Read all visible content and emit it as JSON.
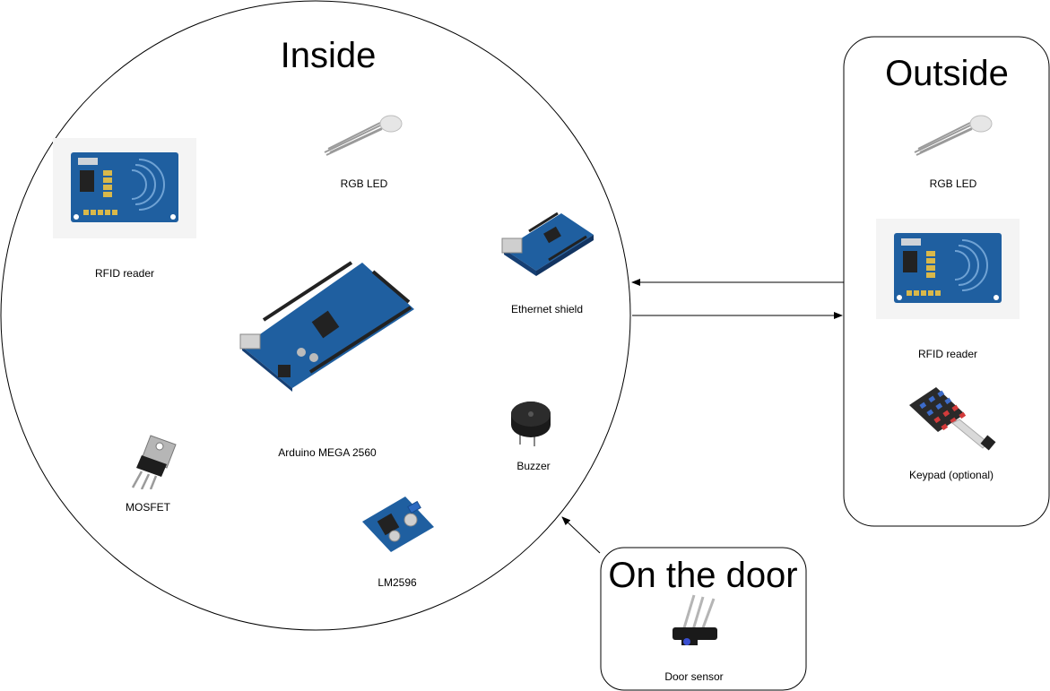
{
  "containers": {
    "inside": {
      "title": "Inside"
    },
    "outside": {
      "title": "Outside"
    },
    "door": {
      "title": "On the door"
    }
  },
  "components": {
    "inside_rfid": {
      "label": "RFID reader",
      "icon": "rfid-reader-icon"
    },
    "inside_rgb_led": {
      "label": "RGB LED",
      "icon": "rgb-led-icon"
    },
    "ethernet_shield": {
      "label": "Ethernet shield",
      "icon": "ethernet-shield-icon"
    },
    "arduino": {
      "label": "Arduino MEGA 2560",
      "icon": "arduino-board-icon"
    },
    "buzzer": {
      "label": "Buzzer",
      "icon": "buzzer-icon"
    },
    "mosfet": {
      "label": "MOSFET",
      "icon": "mosfet-icon"
    },
    "lm2596": {
      "label": "LM2596",
      "icon": "voltage-regulator-icon"
    },
    "outside_rgb_led": {
      "label": "RGB LED",
      "icon": "rgb-led-icon"
    },
    "outside_rfid": {
      "label": "RFID reader",
      "icon": "rfid-reader-icon"
    },
    "keypad": {
      "label": "Keypad (optional)",
      "icon": "keypad-icon"
    },
    "door_sensor": {
      "label": "Door sensor",
      "icon": "door-sensor-icon"
    }
  },
  "colors": {
    "board_blue": "#1f5fa0",
    "board_dark": "#163f73",
    "line": "#000000"
  }
}
